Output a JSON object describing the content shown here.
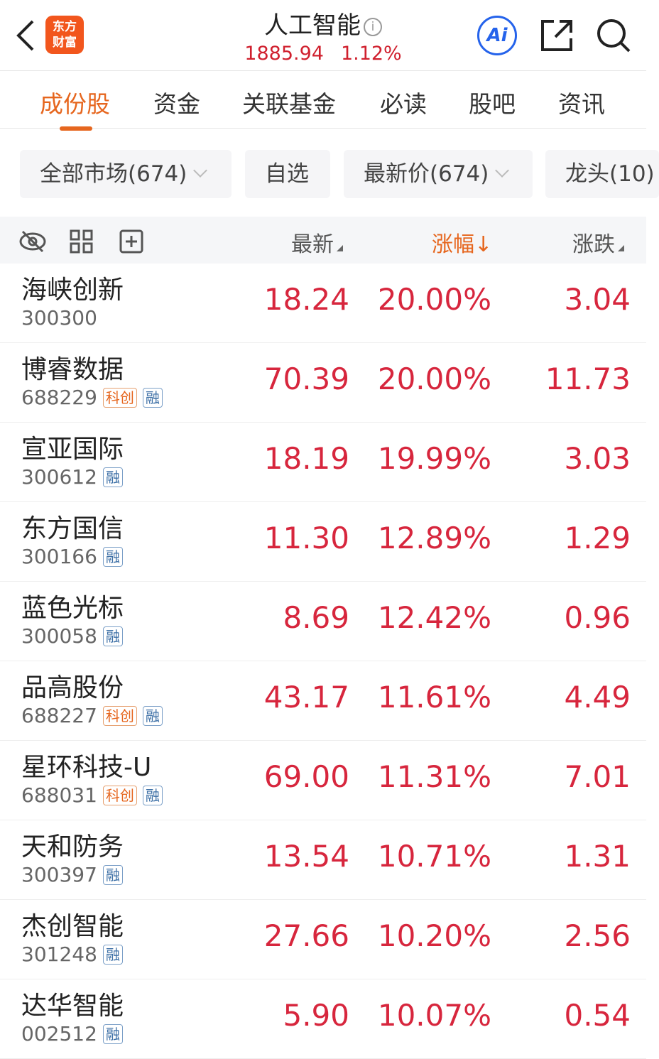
{
  "header": {
    "title": "人工智能",
    "index_value": "1885.94",
    "index_change": "1.12%",
    "logo_text": "东方财富",
    "ai_label": "Ai",
    "info_icon": "info-icon",
    "icons": [
      "back-arrow-icon",
      "ai-icon",
      "share-icon",
      "search-icon"
    ]
  },
  "tabs": [
    {
      "label": "成份股",
      "active": true
    },
    {
      "label": "资金"
    },
    {
      "label": "关联基金"
    },
    {
      "label": "必读"
    },
    {
      "label": "股吧"
    },
    {
      "label": "资讯"
    }
  ],
  "filters": [
    "全部市场(674)",
    "自选",
    "最新价(674)",
    "龙头(10)"
  ],
  "table": {
    "columns": [
      "最新",
      "涨幅↓",
      "涨跌"
    ],
    "sort_color": "#e6661e",
    "rows": [
      {
        "name": "海峡创新",
        "code": "300300",
        "tags": [],
        "price": "18.24",
        "pct": "20.00%",
        "chg": "3.04"
      },
      {
        "name": "博睿数据",
        "code": "688229",
        "tags": [
          "科创",
          "融"
        ],
        "price": "70.39",
        "pct": "20.00%",
        "chg": "11.73"
      },
      {
        "name": "宣亚国际",
        "code": "300612",
        "tags": [
          "融"
        ],
        "price": "18.19",
        "pct": "19.99%",
        "chg": "3.03"
      },
      {
        "name": "东方国信",
        "code": "300166",
        "tags": [
          "融"
        ],
        "price": "11.30",
        "pct": "12.89%",
        "chg": "1.29"
      },
      {
        "name": "蓝色光标",
        "code": "300058",
        "tags": [
          "融"
        ],
        "price": "8.69",
        "pct": "12.42%",
        "chg": "0.96"
      },
      {
        "name": "品高股份",
        "code": "688227",
        "tags": [
          "科创",
          "融"
        ],
        "price": "43.17",
        "pct": "11.61%",
        "chg": "4.49"
      },
      {
        "name": "星环科技-U",
        "code": "688031",
        "tags": [
          "科创",
          "融"
        ],
        "price": "69.00",
        "pct": "11.31%",
        "chg": "7.01"
      },
      {
        "name": "天和防务",
        "code": "300397",
        "tags": [
          "融"
        ],
        "price": "13.54",
        "pct": "10.71%",
        "chg": "1.31"
      },
      {
        "name": "杰创智能",
        "code": "301248",
        "tags": [
          "融"
        ],
        "price": "27.66",
        "pct": "10.20%",
        "chg": "2.56"
      },
      {
        "name": "达华智能",
        "code": "002512",
        "tags": [
          "融"
        ],
        "price": "5.90",
        "pct": "10.07%",
        "chg": "0.54"
      }
    ]
  },
  "colors": {
    "up": "#d7263d",
    "accent": "#e6661e",
    "ai": "#2563eb"
  }
}
